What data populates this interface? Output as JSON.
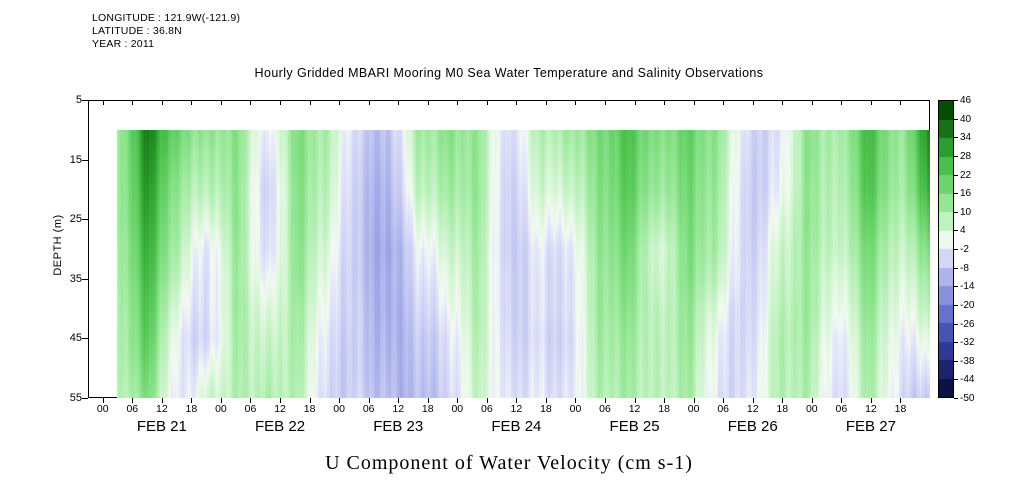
{
  "header": {
    "longitude": "LONGITUDE : 121.9W(-121.9)",
    "latitude": "LATITUDE : 36.8N",
    "year": "YEAR : 2011"
  },
  "title": "Hourly Gridded MBARI Mooring M0 Sea Water Temperature and Salinity Observations",
  "bottom_title": "U Component of Water Velocity (cm s-1)",
  "chart_data": {
    "type": "heatmap",
    "title": "Hourly Gridded MBARI Mooring M0 Sea Water Temperature and Salinity Observations",
    "xlabel": "U Component of Water Velocity (cm s-1)",
    "ylabel": "DEPTH (m)",
    "y_axis_range": [
      5,
      55
    ],
    "depth_ticks": [
      5,
      15,
      25,
      35,
      45,
      55
    ],
    "day_labels": [
      "FEB 21",
      "FEB 22",
      "FEB 23",
      "FEB 24",
      "FEB 25",
      "FEB 26",
      "FEB 27"
    ],
    "hour_ticks": [
      "00",
      "06",
      "12",
      "18"
    ],
    "hour_tick_values": [
      0,
      6,
      12,
      18
    ],
    "time_step_hours": 6,
    "data_depths": [
      10,
      15,
      20,
      25,
      30,
      35,
      40,
      45,
      50,
      55
    ],
    "values_units": "cm/s",
    "values": [
      [
        8,
        36,
        18,
        12,
        14,
        -4,
        16,
        8,
        -6,
        -10,
        10,
        14,
        12,
        -6,
        8,
        10,
        16,
        24,
        14,
        20,
        12,
        -6,
        -4,
        14,
        8,
        26,
        10,
        34
      ],
      [
        8,
        34,
        15,
        9,
        14,
        -6,
        16,
        7,
        -7,
        -11,
        8,
        12,
        12,
        -7,
        6,
        7,
        15,
        23,
        12,
        19,
        11,
        -7,
        -3,
        14,
        7,
        25,
        9,
        31
      ],
      [
        8,
        32,
        12,
        6,
        13,
        -8,
        15,
        6,
        -8,
        -12,
        6,
        10,
        12,
        -8,
        4,
        4,
        14,
        22,
        10,
        18,
        10,
        -8,
        -2,
        13,
        6,
        24,
        8,
        28
      ],
      [
        8,
        30,
        10,
        1,
        13,
        -7,
        15,
        4,
        -8,
        -13,
        2,
        7,
        11,
        -8,
        1,
        0,
        13,
        20,
        6,
        17,
        9,
        -8,
        1,
        13,
        5,
        21,
        6,
        22
      ],
      [
        7,
        28,
        8,
        -4,
        12,
        -6,
        14,
        2,
        -8,
        -14,
        -2,
        4,
        10,
        -8,
        -2,
        -4,
        12,
        18,
        2,
        16,
        8,
        -8,
        4,
        12,
        4,
        18,
        4,
        16
      ],
      [
        7,
        26,
        5,
        -5,
        11,
        -3,
        13,
        0,
        -8,
        -13,
        -4,
        1,
        9,
        -7,
        -3,
        -5,
        11,
        16,
        3,
        15,
        5,
        -7,
        5,
        11,
        1,
        16,
        2,
        11
      ],
      [
        6,
        24,
        1,
        -5,
        11,
        1,
        11,
        -2,
        -7,
        -13,
        -6,
        -1,
        9,
        -7,
        -3,
        -5,
        11,
        14,
        5,
        13,
        1,
        -7,
        7,
        11,
        -1,
        14,
        0,
        7
      ],
      [
        6,
        22,
        -2,
        -6,
        10,
        4,
        10,
        -4,
        -7,
        -12,
        -8,
        -4,
        8,
        -6,
        -4,
        -6,
        10,
        12,
        6,
        12,
        -2,
        -6,
        8,
        10,
        -4,
        12,
        -2,
        2
      ],
      [
        6,
        19,
        -3,
        -1,
        9,
        6,
        9,
        -5,
        -7,
        -11,
        -9,
        -5,
        7,
        -5,
        -3,
        -5,
        9,
        11,
        6,
        11,
        -3,
        -5,
        8,
        9,
        -5,
        11,
        -3,
        -3
      ],
      [
        5,
        16,
        -4,
        4,
        8,
        8,
        8,
        -6,
        -6,
        -10,
        -10,
        -6,
        6,
        -4,
        -2,
        -4,
        8,
        10,
        6,
        10,
        -4,
        -4,
        8,
        8,
        -6,
        10,
        -4,
        -8
      ]
    ],
    "colorbar": {
      "ticks": [
        46,
        40,
        34,
        28,
        22,
        16,
        10,
        4,
        -2,
        -8,
        -14,
        -20,
        -26,
        -32,
        -38,
        -44,
        -50
      ],
      "range": [
        -50,
        46
      ],
      "stops": [
        {
          "v": 46,
          "c": "#003b00"
        },
        {
          "v": 40,
          "c": "#0a5c0a"
        },
        {
          "v": 34,
          "c": "#1f8a1f"
        },
        {
          "v": 28,
          "c": "#3ab03a"
        },
        {
          "v": 22,
          "c": "#5bcb5b"
        },
        {
          "v": 16,
          "c": "#80df80"
        },
        {
          "v": 10,
          "c": "#a8eda8"
        },
        {
          "v": 4,
          "c": "#d4f6d4"
        },
        {
          "v": 0,
          "c": "#f4faf2"
        },
        {
          "v": -2,
          "c": "#e6e8fa"
        },
        {
          "v": -8,
          "c": "#c2c7f1"
        },
        {
          "v": -14,
          "c": "#99a1e6"
        },
        {
          "v": -20,
          "c": "#7681d5"
        },
        {
          "v": -26,
          "c": "#5561c1"
        },
        {
          "v": -32,
          "c": "#3a46a5"
        },
        {
          "v": -38,
          "c": "#252e84"
        },
        {
          "v": -44,
          "c": "#13195c"
        },
        {
          "v": -50,
          "c": "#060a2e"
        }
      ]
    },
    "legend_position": "right",
    "grid": false
  }
}
